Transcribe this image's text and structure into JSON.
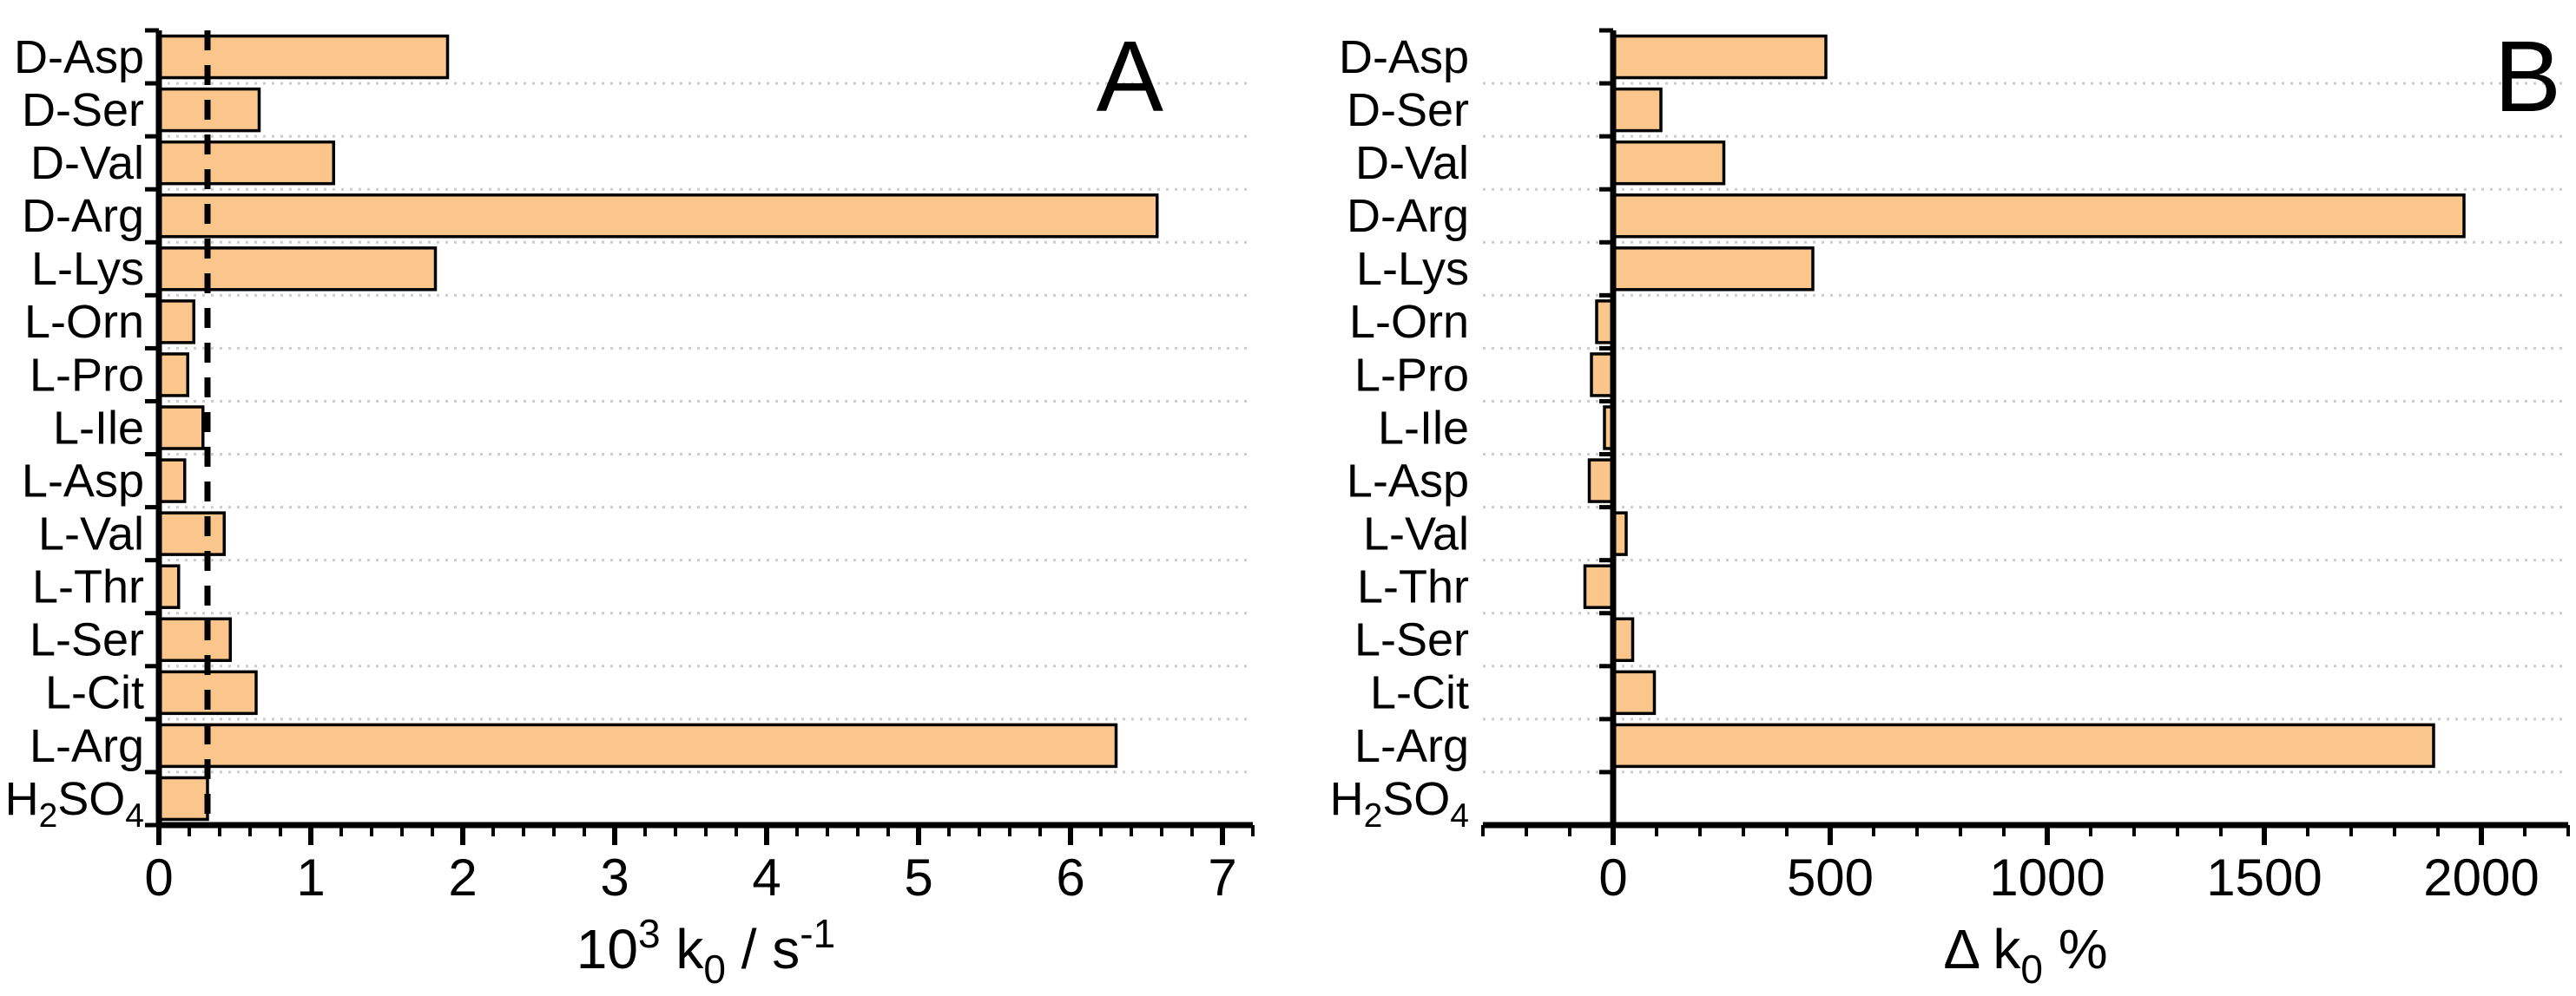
{
  "figure_background": "#FFFFFF",
  "colors": {
    "bar_fill": "#FAC68C",
    "bar_border": "#000000",
    "grid": "#CCCCCC",
    "axis": "#000000",
    "reference_line": "#000000",
    "text": "#000000"
  },
  "chart_data": [
    {
      "type": "bar",
      "orientation": "horizontal",
      "panel_letter": "A",
      "xlabel": "10^3 k_0 / s^-1",
      "xlabel_tokens": [
        {
          "t": "10"
        },
        {
          "t": "3",
          "s": "sup"
        },
        {
          "t": " k"
        },
        {
          "t": "0",
          "s": "sub"
        },
        {
          "t": " / s"
        },
        {
          "t": "-1",
          "s": "sup"
        }
      ],
      "categories": [
        "D-Asp",
        "D-Ser",
        "D-Val",
        "D-Arg",
        "L-Lys",
        "L-Orn",
        "L-Pro",
        "L-Ile",
        "L-Asp",
        "L-Val",
        "L-Thr",
        "L-Ser",
        "L-Cit",
        "L-Arg",
        "H2SO4"
      ],
      "category_tokens": [
        [
          {
            "t": "D-Asp"
          }
        ],
        [
          {
            "t": "D-Ser"
          }
        ],
        [
          {
            "t": "D-Val"
          }
        ],
        [
          {
            "t": "D-Arg"
          }
        ],
        [
          {
            "t": "L-Lys"
          }
        ],
        [
          {
            "t": "L-Orn"
          }
        ],
        [
          {
            "t": "L-Pro"
          }
        ],
        [
          {
            "t": "L-Ile"
          }
        ],
        [
          {
            "t": "L-Asp"
          }
        ],
        [
          {
            "t": "L-Val"
          }
        ],
        [
          {
            "t": "L-Thr"
          }
        ],
        [
          {
            "t": "L-Ser"
          }
        ],
        [
          {
            "t": "L-Cit"
          }
        ],
        [
          {
            "t": "L-Arg"
          }
        ],
        [
          {
            "t": "H"
          },
          {
            "t": "2",
            "s": "sub"
          },
          {
            "t": "SO"
          },
          {
            "t": "4",
            "s": "sub"
          }
        ]
      ],
      "values": [
        1.9,
        0.66,
        1.15,
        6.57,
        1.82,
        0.23,
        0.19,
        0.29,
        0.17,
        0.43,
        0.13,
        0.47,
        0.64,
        6.3,
        0.32
      ],
      "xlim": [
        0,
        7.2
      ],
      "x_major_ticks": [
        0,
        1,
        2,
        3,
        4,
        5,
        6,
        7
      ],
      "x_tick_labels": [
        "0",
        "1",
        "2",
        "3",
        "4",
        "5",
        "6",
        "7"
      ],
      "x_minor_step": 0.2,
      "reference_line_x": 0.32,
      "grid": "dotted horizontal lines at category boundaries",
      "legend": null
    },
    {
      "type": "bar",
      "orientation": "horizontal",
      "panel_letter": "B",
      "xlabel": "Δ k_0 %",
      "xlabel_tokens": [
        {
          "t": "Δ k"
        },
        {
          "t": "0",
          "s": "sub"
        },
        {
          "t": " %"
        }
      ],
      "categories": [
        "D-Asp",
        "D-Ser",
        "D-Val",
        "D-Arg",
        "L-Lys",
        "L-Orn",
        "L-Pro",
        "L-Ile",
        "L-Asp",
        "L-Val",
        "L-Thr",
        "L-Ser",
        "L-Cit",
        "L-Arg",
        "H2SO4"
      ],
      "category_tokens": [
        [
          {
            "t": "D-Asp"
          }
        ],
        [
          {
            "t": "D-Ser"
          }
        ],
        [
          {
            "t": "D-Val"
          }
        ],
        [
          {
            "t": "D-Arg"
          }
        ],
        [
          {
            "t": "L-Lys"
          }
        ],
        [
          {
            "t": "L-Orn"
          }
        ],
        [
          {
            "t": "L-Pro"
          }
        ],
        [
          {
            "t": "L-Ile"
          }
        ],
        [
          {
            "t": "L-Asp"
          }
        ],
        [
          {
            "t": "L-Val"
          }
        ],
        [
          {
            "t": "L-Thr"
          }
        ],
        [
          {
            "t": "L-Ser"
          }
        ],
        [
          {
            "t": "L-Cit"
          }
        ],
        [
          {
            "t": "L-Arg"
          }
        ],
        [
          {
            "t": "H"
          },
          {
            "t": "2",
            "s": "sub"
          },
          {
            "t": "SO"
          },
          {
            "t": "4",
            "s": "sub"
          }
        ]
      ],
      "values": [
        490,
        110,
        255,
        1960,
        460,
        -38,
        -50,
        -20,
        -55,
        30,
        -65,
        45,
        95,
        1890,
        0
      ],
      "xlim": [
        -300,
        2200
      ],
      "x_major_ticks": [
        0,
        500,
        1000,
        1500,
        2000
      ],
      "x_tick_labels": [
        "0",
        "500",
        "1000",
        "1500",
        "2000"
      ],
      "x_minor_step": 100,
      "reference_line_x": null,
      "grid": "dotted horizontal lines at category boundaries",
      "legend": null
    }
  ]
}
